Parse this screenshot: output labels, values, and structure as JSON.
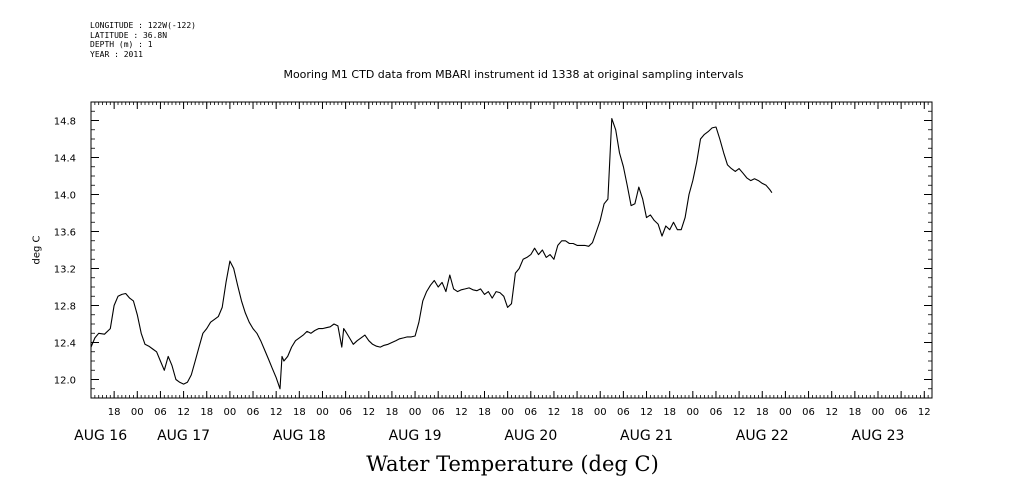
{
  "metadata": {
    "longitude": "LONGITUDE : 122W(-122)",
    "latitude": "LATITUDE : 36.8N",
    "depth": "DEPTH (m) : 1",
    "year": "YEAR : 2011"
  },
  "chart_data": {
    "type": "line",
    "title": "Mooring M1 CTD data from MBARI instrument id 1338 at original sampling intervals",
    "xlabel": "Water Temperature (deg C)",
    "ylabel": "deg C",
    "x_unit": "hours since AUG 16 00:00 (2011)",
    "xlim": [
      12,
      230
    ],
    "ylim": [
      11.8,
      15.0
    ],
    "yticks": [
      12.0,
      12.4,
      12.8,
      13.2,
      13.6,
      14.0,
      14.4,
      14.8
    ],
    "ytick_labels": [
      "12.0",
      "12.4",
      "12.8",
      "13.2",
      "13.6",
      "14.0",
      "14.4",
      "14.8"
    ],
    "x_hour_ticks": [
      18,
      24,
      30,
      36,
      42,
      48,
      54,
      60,
      66,
      72,
      78,
      84,
      90,
      96,
      102,
      108,
      114,
      120,
      126,
      132,
      138,
      144,
      150,
      156,
      162,
      168,
      174,
      180,
      186,
      192,
      198,
      204,
      210,
      216,
      222,
      228
    ],
    "x_hour_labels": [
      "18",
      "00",
      "06",
      "12",
      "18",
      "00",
      "06",
      "12",
      "18",
      "00",
      "06",
      "12",
      "18",
      "00",
      "06",
      "12",
      "18",
      "00",
      "06",
      "12",
      "18",
      "00",
      "06",
      "12",
      "18",
      "00",
      "06",
      "12",
      "18",
      "00",
      "06",
      "12",
      "18",
      "00",
      "06",
      "12"
    ],
    "day_labels": [
      {
        "x": 14.5,
        "label": "AUG 16"
      },
      {
        "x": 36,
        "label": "AUG 17"
      },
      {
        "x": 66,
        "label": "AUG 18"
      },
      {
        "x": 96,
        "label": "AUG 19"
      },
      {
        "x": 126,
        "label": "AUG 20"
      },
      {
        "x": 156,
        "label": "AUG 21"
      },
      {
        "x": 186,
        "label": "AUG 22"
      },
      {
        "x": 216,
        "label": "AUG 23"
      }
    ],
    "grid": false,
    "series": [
      {
        "color": "#000000",
        "points": [
          [
            12,
            12.35
          ],
          [
            13,
            12.45
          ],
          [
            14,
            12.5
          ],
          [
            15.5,
            12.49
          ],
          [
            17,
            12.55
          ],
          [
            18,
            12.8
          ],
          [
            19,
            12.9
          ],
          [
            20,
            12.92
          ],
          [
            21,
            12.93
          ],
          [
            22,
            12.88
          ],
          [
            23,
            12.85
          ],
          [
            24,
            12.7
          ],
          [
            25,
            12.5
          ],
          [
            26,
            12.38
          ],
          [
            27,
            12.36
          ],
          [
            28,
            12.33
          ],
          [
            29,
            12.3
          ],
          [
            30,
            12.2
          ],
          [
            31,
            12.1
          ],
          [
            32,
            12.25
          ],
          [
            33,
            12.15
          ],
          [
            34,
            12.0
          ],
          [
            35,
            11.97
          ],
          [
            36,
            11.95
          ],
          [
            37,
            11.97
          ],
          [
            38,
            12.05
          ],
          [
            39,
            12.2
          ],
          [
            40,
            12.35
          ],
          [
            41,
            12.5
          ],
          [
            42,
            12.55
          ],
          [
            43,
            12.62
          ],
          [
            44,
            12.65
          ],
          [
            45,
            12.68
          ],
          [
            46,
            12.78
          ],
          [
            47,
            13.05
          ],
          [
            48,
            13.28
          ],
          [
            49,
            13.2
          ],
          [
            50,
            13.02
          ],
          [
            51,
            12.85
          ],
          [
            52,
            12.72
          ],
          [
            53,
            12.62
          ],
          [
            54,
            12.55
          ],
          [
            55,
            12.5
          ],
          [
            56,
            12.42
          ],
          [
            57,
            12.32
          ],
          [
            58,
            12.22
          ],
          [
            59,
            12.12
          ],
          [
            60,
            12.02
          ],
          [
            61,
            11.9
          ],
          [
            61.5,
            12.25
          ],
          [
            62,
            12.2
          ],
          [
            63,
            12.25
          ],
          [
            64,
            12.35
          ],
          [
            65,
            12.42
          ],
          [
            66,
            12.45
          ],
          [
            67,
            12.48
          ],
          [
            68,
            12.52
          ],
          [
            69,
            12.5
          ],
          [
            70,
            12.53
          ],
          [
            71,
            12.55
          ],
          [
            72,
            12.55
          ],
          [
            73,
            12.56
          ],
          [
            74,
            12.57
          ],
          [
            75,
            12.6
          ],
          [
            76,
            12.58
          ],
          [
            77,
            12.35
          ],
          [
            77.5,
            12.55
          ],
          [
            78,
            12.52
          ],
          [
            79,
            12.45
          ],
          [
            80,
            12.38
          ],
          [
            81,
            12.42
          ],
          [
            82,
            12.45
          ],
          [
            83,
            12.48
          ],
          [
            84,
            12.42
          ],
          [
            85,
            12.38
          ],
          [
            86,
            12.36
          ],
          [
            87,
            12.35
          ],
          [
            88,
            12.37
          ],
          [
            89,
            12.38
          ],
          [
            90,
            12.4
          ],
          [
            91,
            12.42
          ],
          [
            92,
            12.44
          ],
          [
            93,
            12.45
          ],
          [
            94,
            12.46
          ],
          [
            95,
            12.46
          ],
          [
            96,
            12.47
          ],
          [
            97,
            12.62
          ],
          [
            98,
            12.85
          ],
          [
            99,
            12.95
          ],
          [
            100,
            13.02
          ],
          [
            101,
            13.07
          ],
          [
            102,
            13.0
          ],
          [
            103,
            13.05
          ],
          [
            104,
            12.95
          ],
          [
            105,
            13.13
          ],
          [
            106,
            12.98
          ],
          [
            107,
            12.95
          ],
          [
            108,
            12.97
          ],
          [
            109,
            12.98
          ],
          [
            110,
            12.99
          ],
          [
            111,
            12.97
          ],
          [
            112,
            12.96
          ],
          [
            113,
            12.98
          ],
          [
            114,
            12.92
          ],
          [
            115,
            12.95
          ],
          [
            116,
            12.88
          ],
          [
            117,
            12.95
          ],
          [
            118,
            12.94
          ],
          [
            119,
            12.9
          ],
          [
            120,
            12.78
          ],
          [
            121,
            12.82
          ],
          [
            122,
            13.15
          ],
          [
            123,
            13.2
          ],
          [
            124,
            13.3
          ],
          [
            125,
            13.32
          ],
          [
            126,
            13.35
          ],
          [
            127,
            13.42
          ],
          [
            128,
            13.35
          ],
          [
            129,
            13.4
          ],
          [
            130,
            13.32
          ],
          [
            131,
            13.35
          ],
          [
            132,
            13.3
          ],
          [
            133,
            13.45
          ],
          [
            134,
            13.5
          ],
          [
            135,
            13.5
          ],
          [
            136,
            13.47
          ],
          [
            137,
            13.47
          ],
          [
            138,
            13.45
          ],
          [
            139,
            13.45
          ],
          [
            140,
            13.45
          ],
          [
            141,
            13.44
          ],
          [
            142,
            13.48
          ],
          [
            143,
            13.6
          ],
          [
            144,
            13.72
          ],
          [
            145,
            13.9
          ],
          [
            146,
            13.95
          ],
          [
            147,
            14.82
          ],
          [
            148,
            14.7
          ],
          [
            149,
            14.45
          ],
          [
            150,
            14.3
          ],
          [
            151,
            14.1
          ],
          [
            152,
            13.88
          ],
          [
            153,
            13.9
          ],
          [
            154,
            14.08
          ],
          [
            155,
            13.95
          ],
          [
            156,
            13.75
          ],
          [
            157,
            13.78
          ],
          [
            158,
            13.72
          ],
          [
            159,
            13.68
          ],
          [
            160,
            13.55
          ],
          [
            161,
            13.66
          ],
          [
            162,
            13.62
          ],
          [
            163,
            13.7
          ],
          [
            164,
            13.62
          ],
          [
            165,
            13.62
          ],
          [
            166,
            13.75
          ],
          [
            167,
            14.0
          ],
          [
            168,
            14.15
          ],
          [
            169,
            14.35
          ],
          [
            170,
            14.6
          ],
          [
            171,
            14.65
          ],
          [
            172,
            14.68
          ],
          [
            173,
            14.72
          ],
          [
            174,
            14.73
          ],
          [
            175,
            14.6
          ],
          [
            176,
            14.45
          ],
          [
            177,
            14.32
          ],
          [
            178,
            14.28
          ],
          [
            179,
            14.25
          ],
          [
            180,
            14.28
          ],
          [
            181,
            14.23
          ],
          [
            182,
            14.18
          ],
          [
            183,
            14.15
          ],
          [
            184,
            14.17
          ],
          [
            185,
            14.15
          ],
          [
            186,
            14.12
          ],
          [
            187,
            14.1
          ],
          [
            188,
            14.05
          ],
          [
            188.5,
            14.02
          ]
        ]
      }
    ]
  }
}
